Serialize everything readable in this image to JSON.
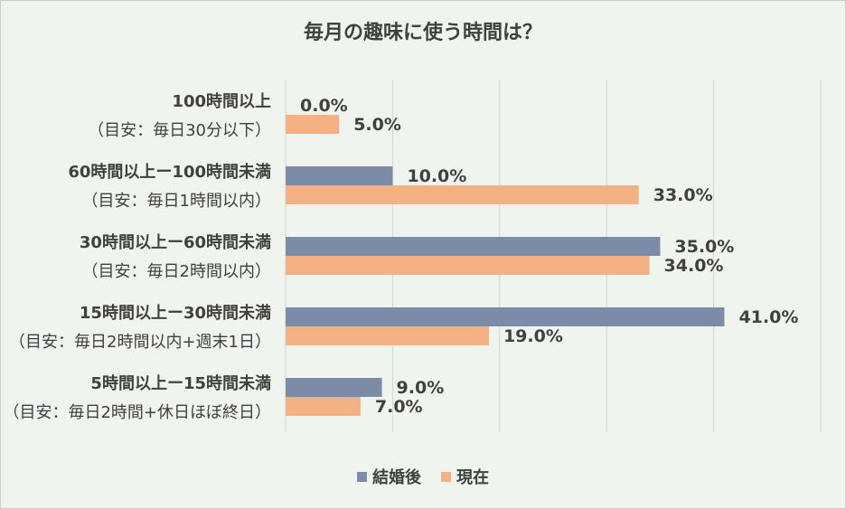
{
  "chart_data": {
    "type": "bar",
    "orientation": "horizontal",
    "title": "毎月の趣味に使う時間は？",
    "categories": [
      [
        "100時間以上",
        "（目安：毎日30分以下）"
      ],
      [
        "60時間以上ー100時間未満",
        "（目安：毎日1時間以内）"
      ],
      [
        "30時間以上ー60時間未満",
        "（目安：毎日2時間以内）"
      ],
      [
        "15時間以上ー30時間未満",
        "（目安：毎日2時間以内+週末1日）"
      ],
      [
        "5時間以上ー15時間未満",
        "（目安：毎日2時間+休日ほぼ終日）"
      ]
    ],
    "series": [
      {
        "name": "結婚後",
        "color": "#7b8ba8",
        "values": [
          0.0,
          10.0,
          35.0,
          41.0,
          9.0
        ]
      },
      {
        "name": "現在",
        "color": "#f4b183",
        "values": [
          5.0,
          33.0,
          34.0,
          19.0,
          7.0
        ]
      }
    ],
    "data_labels": [
      [
        "0.0%",
        "10.0%",
        "35.0%",
        "41.0%",
        "9.0%"
      ],
      [
        "5.0%",
        "33.0%",
        "34.0%",
        "19.0%",
        "7.0%"
      ]
    ],
    "xlim": [
      0,
      50
    ],
    "grid": "vertical",
    "legend": "bottom"
  }
}
